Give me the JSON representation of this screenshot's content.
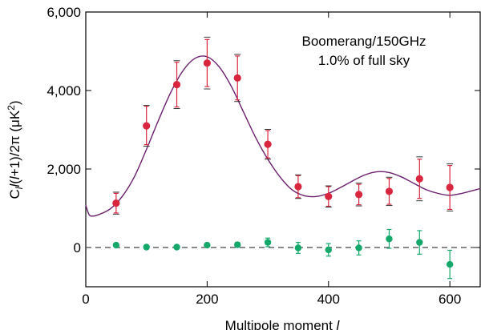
{
  "chart_data": {
    "type": "scatter",
    "xlabel": "Multipole moment l",
    "ylabel": "Cₗl(l+1)/2π (μK²)",
    "xlim": [
      0,
      650
    ],
    "ylim": [
      -1000,
      6000
    ],
    "xticks": [
      0,
      200,
      400,
      600
    ],
    "xtick_labels": [
      "0",
      "200",
      "400",
      "600"
    ],
    "yticks": [
      0,
      2000,
      4000,
      6000
    ],
    "ytick_labels": [
      "0",
      "2,000",
      "4,000",
      "6,000"
    ],
    "grid": false,
    "annotations": [
      "Boomerang/150GHz",
      "1.0% of full sky"
    ],
    "series": [
      {
        "kind": "points-with-errorbars",
        "color": "#d9263f",
        "x": [
          50,
          100,
          150,
          200,
          250,
          300,
          350,
          400,
          450,
          500,
          550,
          600
        ],
        "y": [
          1130,
          3100,
          4150,
          4700,
          4320,
          2630,
          1550,
          1300,
          1350,
          1430,
          1750,
          1530
        ],
        "err_lo": [
          250,
          480,
          570,
          600,
          560,
          350,
          280,
          250,
          260,
          330,
          500,
          560
        ],
        "err_hi": [
          250,
          500,
          570,
          600,
          560,
          350,
          280,
          250,
          260,
          330,
          500,
          560
        ],
        "sys_lo": [
          280,
          520,
          610,
          660,
          600,
          380,
          300,
          270,
          290,
          360,
          560,
          600
        ],
        "sys_hi": [
          280,
          520,
          610,
          660,
          600,
          380,
          300,
          270,
          290,
          360,
          560,
          600
        ]
      },
      {
        "kind": "points-with-errorbars",
        "color": "#14a86a",
        "x": [
          50,
          100,
          150,
          200,
          250,
          300,
          350,
          400,
          450,
          500,
          550,
          600
        ],
        "y": [
          60,
          10,
          10,
          60,
          70,
          130,
          -10,
          -60,
          -10,
          220,
          130,
          -430
        ],
        "err_lo": [
          30,
          30,
          30,
          40,
          60,
          110,
          140,
          160,
          180,
          240,
          300,
          360
        ],
        "err_hi": [
          30,
          30,
          30,
          40,
          60,
          110,
          140,
          160,
          180,
          240,
          300,
          360
        ]
      },
      {
        "kind": "model-curve",
        "color": "#6b1f6e",
        "x": [
          0,
          5,
          10,
          20,
          40,
          60,
          80,
          100,
          120,
          140,
          160,
          180,
          200,
          220,
          240,
          260,
          280,
          300,
          320,
          340,
          360,
          380,
          400,
          420,
          440,
          460,
          480,
          500,
          520,
          540,
          560,
          580,
          600,
          620,
          650
        ],
        "y": [
          1080,
          850,
          800,
          830,
          980,
          1300,
          1800,
          2500,
          3250,
          3950,
          4500,
          4820,
          4860,
          4600,
          4100,
          3450,
          2800,
          2250,
          1800,
          1470,
          1320,
          1300,
          1380,
          1530,
          1700,
          1850,
          1930,
          1910,
          1800,
          1640,
          1480,
          1380,
          1330,
          1380,
          1500
        ]
      },
      {
        "kind": "zero-line",
        "color": "#444444",
        "y": 0
      }
    ]
  }
}
